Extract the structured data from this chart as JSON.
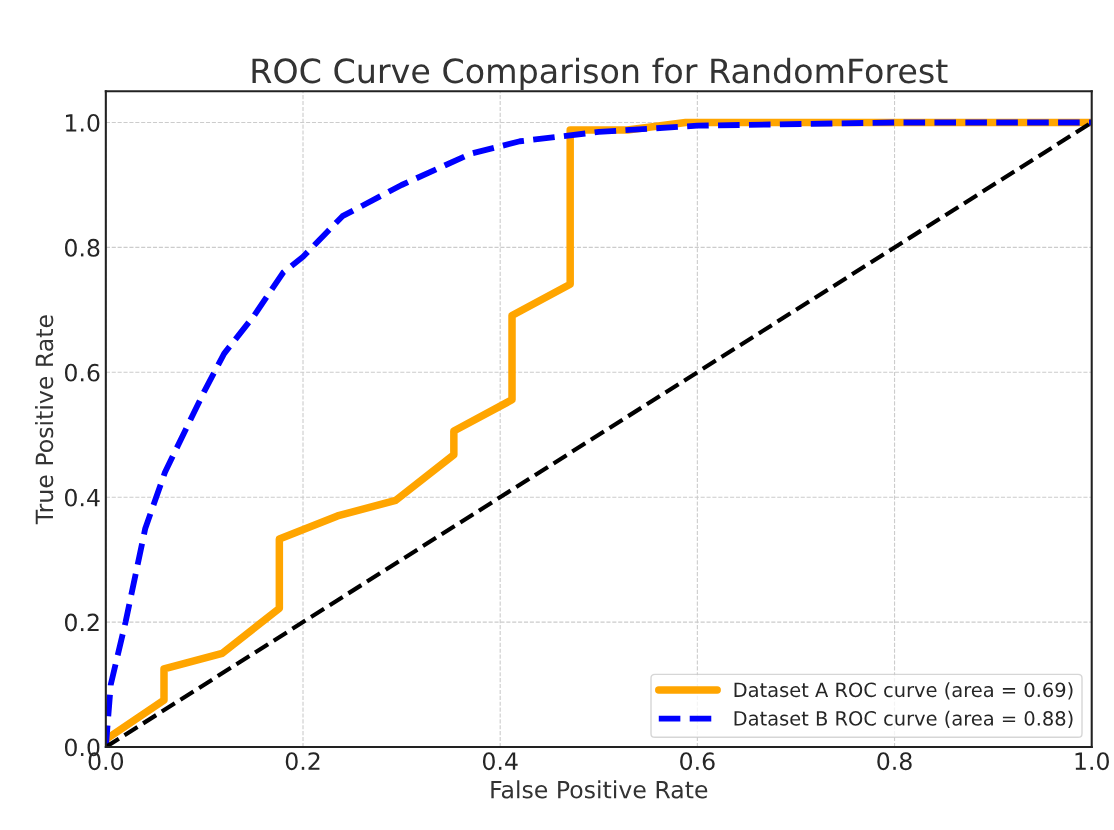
{
  "chart_data": {
    "type": "line",
    "title": "ROC Curve Comparison for RandomForest",
    "xlabel": "False Positive Rate",
    "ylabel": "True Positive Rate",
    "xlim": [
      0.0,
      1.0
    ],
    "ylim": [
      0.0,
      1.05
    ],
    "xticks": [
      {
        "value": 0,
        "label": "0.0"
      },
      0.2,
      0.4,
      0.6,
      0.8,
      {
        "value": 1,
        "label": "1.0"
      }
    ],
    "yticks": [
      {
        "value": 0,
        "label": "0.0"
      },
      0.2,
      0.4,
      0.6,
      0.8,
      {
        "value": 1,
        "label": "1.0"
      }
    ],
    "grid": true,
    "legend": "bottom right",
    "marker": "none",
    "series": [
      {
        "name": "Dataset A ROC curve (area = 0.69)",
        "color": "#ffa500",
        "line_style": "solid",
        "x": [
          0,
          0,
          0.059,
          0.059,
          0.118,
          0.176,
          0.176,
          0.235,
          0.294,
          0.353,
          0.353,
          0.412,
          0.412,
          0.471,
          0.471,
          0.529,
          0.588,
          1.0
        ],
        "values": [
          0,
          0.012,
          0.075,
          0.125,
          0.15,
          0.222,
          0.333,
          0.37,
          0.395,
          0.468,
          0.506,
          0.556,
          0.691,
          0.741,
          0.988,
          0.988,
          1.0,
          1.0
        ]
      },
      {
        "name": "Dataset B ROC curve (area = 0.88)",
        "color": "#0000ff",
        "line_style": "dashed",
        "x": [
          0,
          0.005,
          0.02,
          0.04,
          0.06,
          0.1,
          0.12,
          0.15,
          0.18,
          0.2,
          0.24,
          0.3,
          0.37,
          0.42,
          0.5,
          0.6,
          0.8,
          1.0
        ],
        "values": [
          0,
          0.1,
          0.2,
          0.35,
          0.44,
          0.57,
          0.63,
          0.69,
          0.76,
          0.785,
          0.85,
          0.9,
          0.95,
          0.97,
          0.985,
          0.995,
          1.0,
          1.0
        ]
      },
      {
        "color": "#000000",
        "line_style": "dashed",
        "x": [
          0,
          1
        ],
        "values": [
          0,
          1
        ]
      }
    ]
  }
}
